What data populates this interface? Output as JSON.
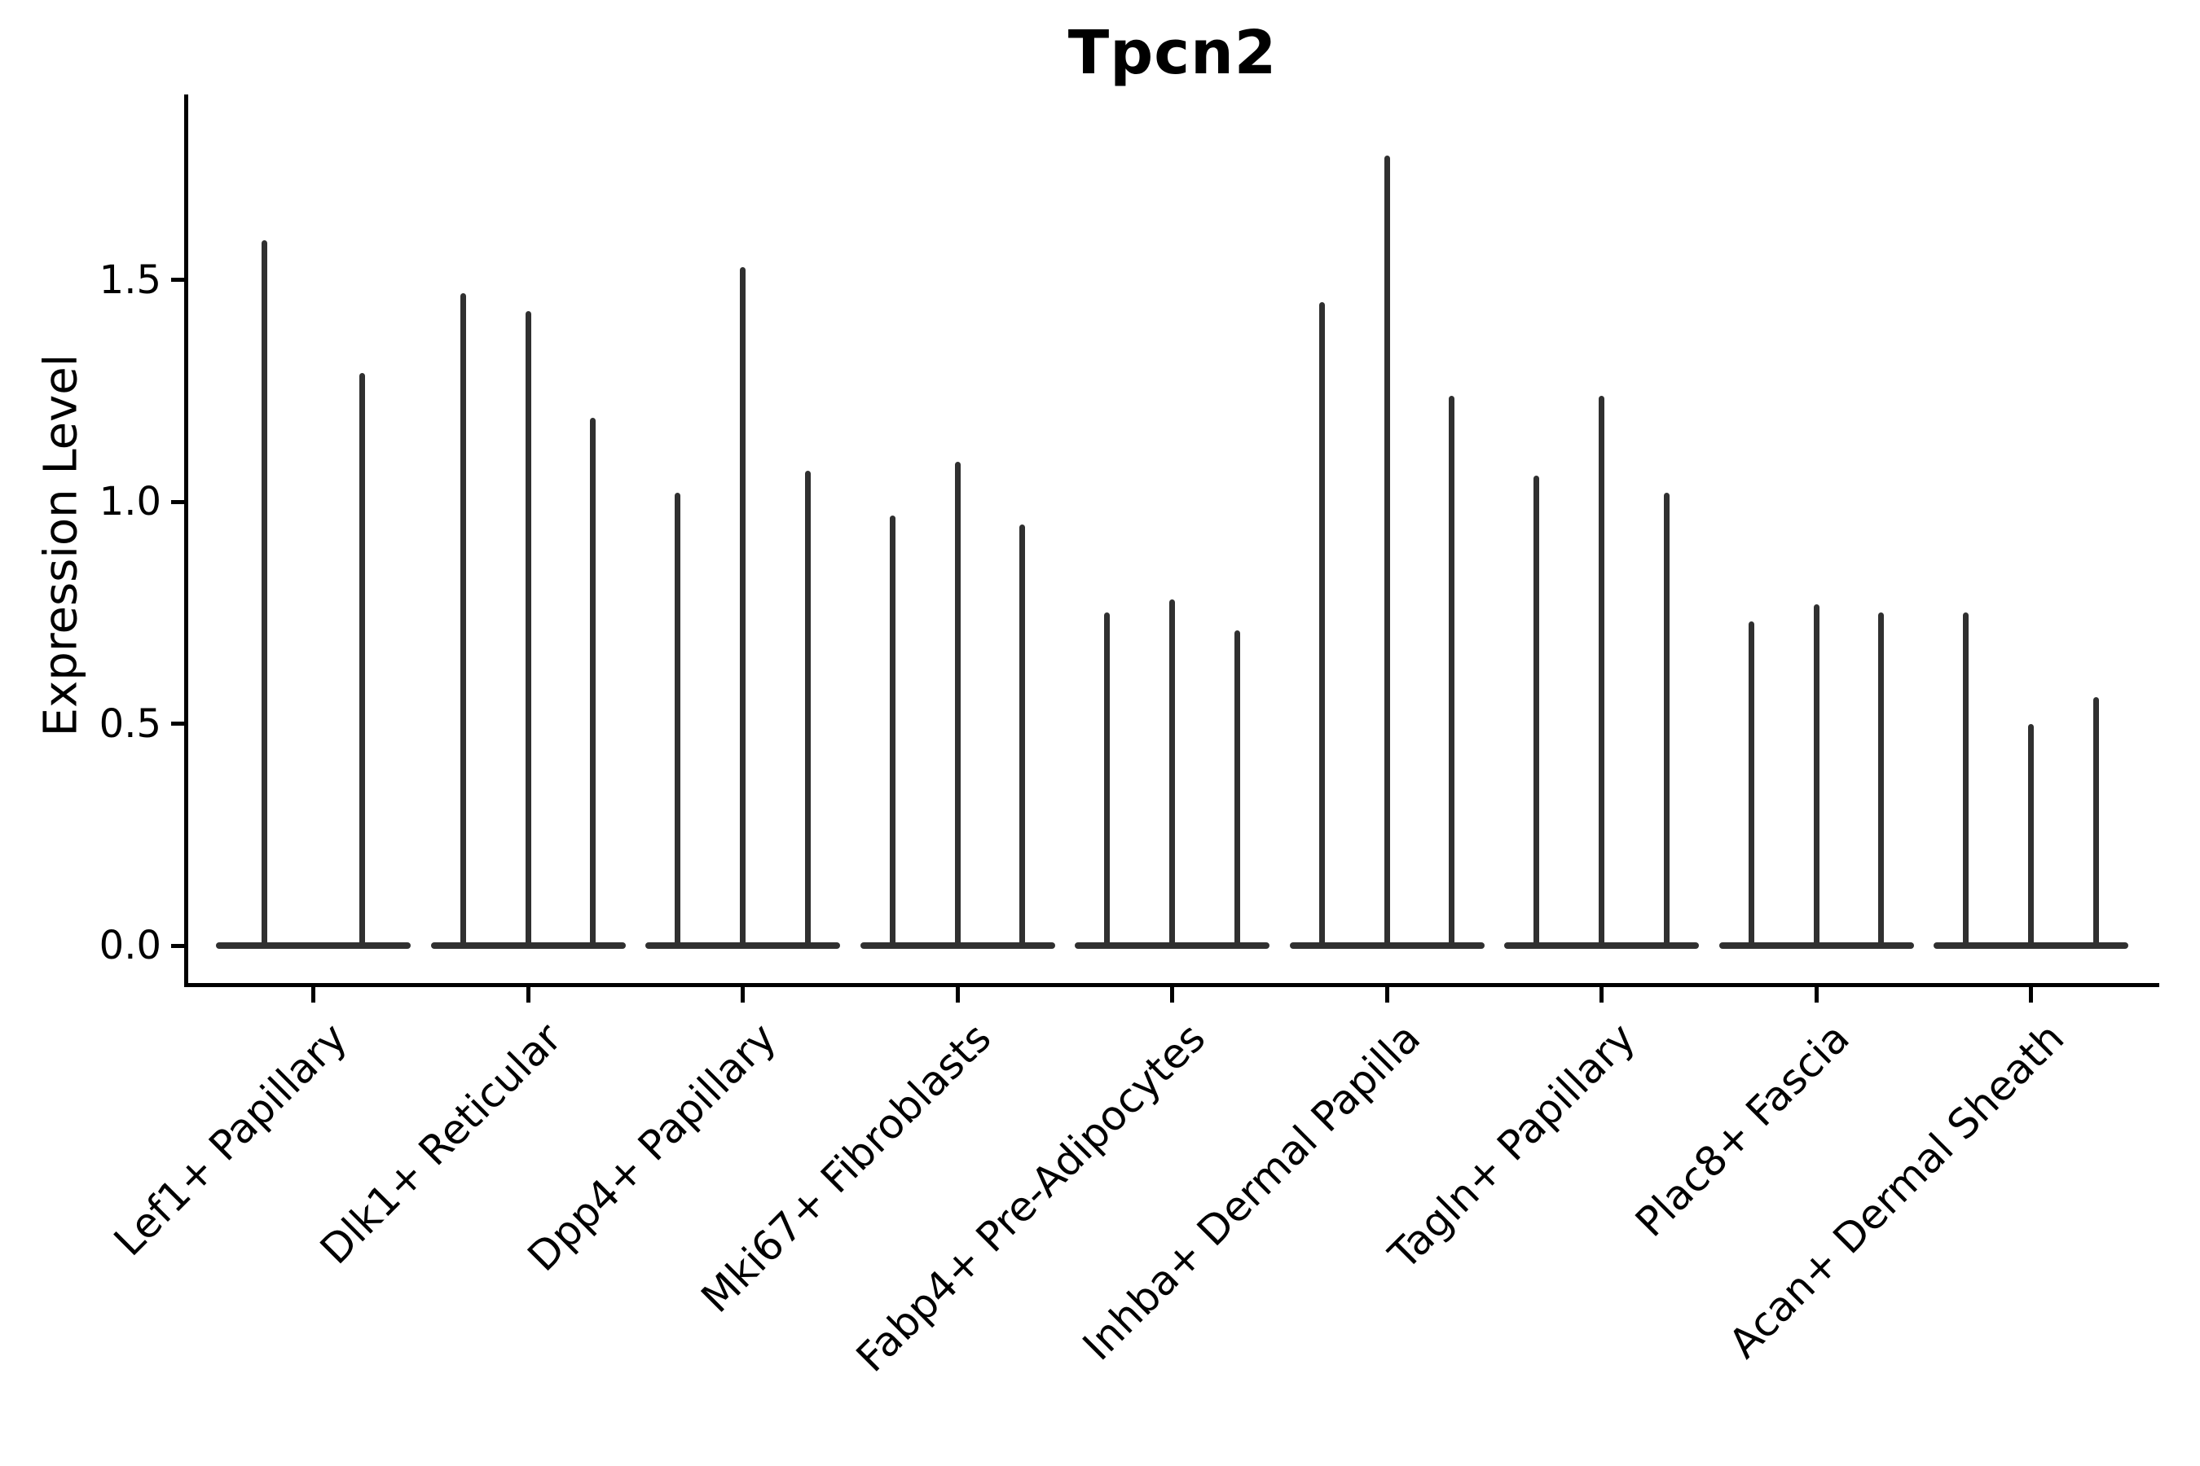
{
  "figure": {
    "title": "Tpcn2"
  },
  "chart_data": {
    "type": "violin",
    "title": "Tpcn2",
    "xlabel": "",
    "ylabel": "Expression Level",
    "grid": false,
    "legend_position": "none",
    "ylim": [
      -0.09,
      1.92
    ],
    "ytick_values": [
      0,
      0.5,
      1.0,
      1.5
    ],
    "ytick_labels": [
      "0.0",
      "0.5",
      "1.0",
      "1.5"
    ],
    "categories": [
      "Lef1+ Papillary",
      "Dlk1+ Reticular",
      "Dpp4+ Papillary",
      "Mki67+ Fibroblasts",
      "Fabp4+ Pre-Adipocytes",
      "Inhba+ Dermal Papilla",
      "Tagln+ Papillary",
      "Plac8+ Fascia",
      "Acan+ Dermal Sheath"
    ],
    "groups": [
      {
        "label": "Lef1+ Papillary",
        "spike_max_values": [
          1.59,
          1.29
        ]
      },
      {
        "label": "Dlk1+ Reticular",
        "spike_max_values": [
          1.47,
          1.43,
          1.19
        ]
      },
      {
        "label": "Dpp4+ Papillary",
        "spike_max_values": [
          1.02,
          1.53,
          1.07
        ]
      },
      {
        "label": "Mki67+ Fibroblasts",
        "spike_max_values": [
          0.97,
          1.09,
          0.95
        ]
      },
      {
        "label": "Fabp4+ Pre-Adipocytes",
        "spike_max_values": [
          0.75,
          0.78,
          0.71
        ]
      },
      {
        "label": "Inhba+ Dermal Papilla",
        "spike_max_values": [
          1.45,
          1.78,
          1.24
        ]
      },
      {
        "label": "Tagln+ Papillary",
        "spike_max_values": [
          1.06,
          1.24,
          1.02
        ]
      },
      {
        "label": "Plac8+ Fascia",
        "spike_max_values": [
          0.73,
          0.77,
          0.75
        ]
      },
      {
        "label": "Acan+ Dermal Sheath",
        "spike_max_values": [
          0.75,
          0.5,
          0.56
        ]
      }
    ],
    "baseline_value": 0.0,
    "colors": {
      "violin": "#303030",
      "axis": "#000000",
      "text": "#000000",
      "background": "#ffffff"
    }
  }
}
